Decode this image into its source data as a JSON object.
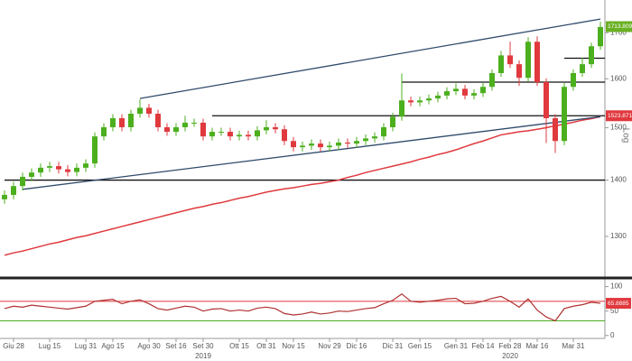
{
  "chart_data": [
    {
      "type": "candlestick",
      "log_scale": true,
      "axis_label": "Log",
      "ylim": [
        1235,
        1775
      ],
      "yticks": [
        1300,
        1400,
        1500,
        1600,
        1700
      ],
      "up_color": "#4caf1e",
      "down_color": "#e0393e",
      "open": [
        1365,
        1373,
        1389,
        1406,
        1414,
        1423,
        1426,
        1420,
        1415,
        1423,
        1431,
        1483,
        1501,
        1519,
        1501,
        1528,
        1540,
        1528,
        1501,
        1492,
        1501,
        1510,
        1510,
        1483,
        1492,
        1492,
        1483,
        1486,
        1483,
        1495,
        1501,
        1497,
        1474,
        1462,
        1465,
        1469,
        1462,
        1465,
        1471,
        1469,
        1474,
        1479,
        1483,
        1501,
        1522,
        1555,
        1551,
        1555,
        1559,
        1565,
        1574,
        1579,
        1565,
        1570,
        1583,
        1612,
        1650,
        1631,
        1602,
        1680,
        1593,
        1519,
        1474,
        1583,
        1612,
        1631,
        1670
      ],
      "high": [
        1381,
        1397,
        1414,
        1422,
        1431,
        1434,
        1434,
        1428,
        1431,
        1439,
        1491,
        1509,
        1527,
        1527,
        1536,
        1557,
        1548,
        1536,
        1509,
        1509,
        1524,
        1518,
        1518,
        1500,
        1500,
        1500,
        1494,
        1494,
        1503,
        1515,
        1509,
        1505,
        1482,
        1473,
        1477,
        1477,
        1473,
        1479,
        1479,
        1482,
        1487,
        1491,
        1509,
        1530,
        1611,
        1563,
        1563,
        1567,
        1573,
        1582,
        1590,
        1587,
        1578,
        1591,
        1620,
        1660,
        1680,
        1639,
        1690,
        1692,
        1601,
        1527,
        1591,
        1620,
        1645,
        1678,
        1725
      ],
      "low": [
        1357,
        1365,
        1381,
        1398,
        1406,
        1415,
        1412,
        1407,
        1407,
        1415,
        1423,
        1475,
        1493,
        1493,
        1493,
        1520,
        1520,
        1493,
        1484,
        1484,
        1493,
        1502,
        1475,
        1475,
        1484,
        1475,
        1475,
        1475,
        1475,
        1487,
        1489,
        1466,
        1454,
        1454,
        1457,
        1454,
        1454,
        1457,
        1461,
        1461,
        1466,
        1471,
        1475,
        1493,
        1514,
        1543,
        1543,
        1547,
        1551,
        1557,
        1566,
        1557,
        1557,
        1562,
        1575,
        1604,
        1623,
        1585,
        1594,
        1585,
        1470,
        1451,
        1466,
        1575,
        1604,
        1623,
        1662
      ],
      "close": [
        1373,
        1389,
        1406,
        1414,
        1423,
        1426,
        1420,
        1415,
        1423,
        1431,
        1483,
        1501,
        1519,
        1501,
        1528,
        1540,
        1528,
        1501,
        1492,
        1501,
        1510,
        1510,
        1483,
        1492,
        1492,
        1483,
        1486,
        1483,
        1495,
        1501,
        1497,
        1474,
        1462,
        1465,
        1469,
        1462,
        1465,
        1471,
        1469,
        1474,
        1479,
        1483,
        1501,
        1522,
        1555,
        1551,
        1555,
        1559,
        1565,
        1574,
        1579,
        1565,
        1570,
        1583,
        1612,
        1650,
        1631,
        1602,
        1680,
        1593,
        1519,
        1474,
        1583,
        1612,
        1631,
        1670,
        1713
      ],
      "lines": [
        {
          "color": "#e0393e",
          "values": [
            1268,
            1272,
            1275,
            1279,
            1283,
            1287,
            1290,
            1294,
            1298,
            1301,
            1305,
            1309,
            1313,
            1317,
            1321,
            1325,
            1329,
            1333,
            1337,
            1341,
            1345,
            1349,
            1352,
            1356,
            1359,
            1363,
            1367,
            1370,
            1374,
            1378,
            1381,
            1384,
            1386,
            1389,
            1392,
            1394,
            1397,
            1400,
            1405,
            1409,
            1414,
            1418,
            1422,
            1426,
            1430,
            1434,
            1439,
            1443,
            1448,
            1452,
            1457,
            1463,
            1469,
            1474,
            1480,
            1486,
            1489,
            1492,
            1494,
            1497,
            1500,
            1504,
            1507,
            1511,
            1515,
            1518,
            1522
          ]
        }
      ],
      "trendlines": [
        {
          "color": "#2f4a6b",
          "x": [
            15,
            66
          ],
          "values": [
            1559,
            1731
          ]
        },
        {
          "color": "#2f4a6b",
          "x": [
            2,
            66
          ],
          "values": [
            1383,
            1522
          ]
        }
      ],
      "levels": [
        {
          "value": 1400,
          "from": 0
        },
        {
          "value": 1523.87,
          "from": 23
        },
        {
          "value": 1593,
          "from": 44
        },
        {
          "value": 1644,
          "from": 62
        }
      ],
      "tags": [
        {
          "value": 1713.8099,
          "color": "#6ab023"
        },
        {
          "value": 1523.8719,
          "color": "#e0393e"
        }
      ]
    },
    {
      "type": "line",
      "ylim": [
        -6,
        114
      ],
      "yticks": [
        100,
        50,
        0
      ],
      "color": "#b03030",
      "values": [
        55,
        60,
        58,
        62,
        60,
        58,
        56,
        54,
        57,
        60,
        70,
        72,
        74,
        65,
        70,
        73,
        65,
        55,
        52,
        56,
        60,
        58,
        50,
        54,
        55,
        50,
        52,
        50,
        56,
        58,
        55,
        45,
        42,
        44,
        48,
        44,
        46,
        50,
        49,
        52,
        55,
        57,
        65,
        72,
        85,
        70,
        68,
        70,
        72,
        75,
        76,
        65,
        66,
        70,
        76,
        80,
        70,
        58,
        75,
        52,
        38,
        30,
        55,
        60,
        63,
        68,
        65.8885
      ],
      "categories": [
        null,
        "Giu 28",
        null,
        null,
        null,
        "Lug 15",
        null,
        null,
        null,
        "Lug 31",
        null,
        null,
        "Ago 15",
        null,
        null,
        null,
        "Ago 30",
        null,
        null,
        "Set 16",
        null,
        null,
        "Set 30",
        null,
        null,
        null,
        "Ott 15",
        null,
        null,
        "Ott 31",
        null,
        null,
        "Nov 15",
        null,
        null,
        null,
        "Nov 29",
        null,
        null,
        "Dic 16",
        null,
        null,
        null,
        "Dic 31",
        null,
        null,
        "Gen 15",
        null,
        null,
        null,
        "Gen 31",
        null,
        null,
        "Feb 14",
        null,
        null,
        "Feb 28",
        null,
        null,
        "Mar 16",
        null,
        null,
        null,
        "Mar 31",
        null,
        null,
        null
      ],
      "x_group_labels": [
        {
          "label": "2019",
          "category": "Set 30"
        },
        {
          "label": "2020",
          "category": "Feb 28"
        }
      ],
      "levels": [
        {
          "value": 70,
          "color": "#e0393e"
        },
        {
          "value": 30,
          "color": "#4caf1e"
        }
      ],
      "tags": [
        {
          "value": 65.8885,
          "color": "#e0393e"
        }
      ]
    }
  ]
}
